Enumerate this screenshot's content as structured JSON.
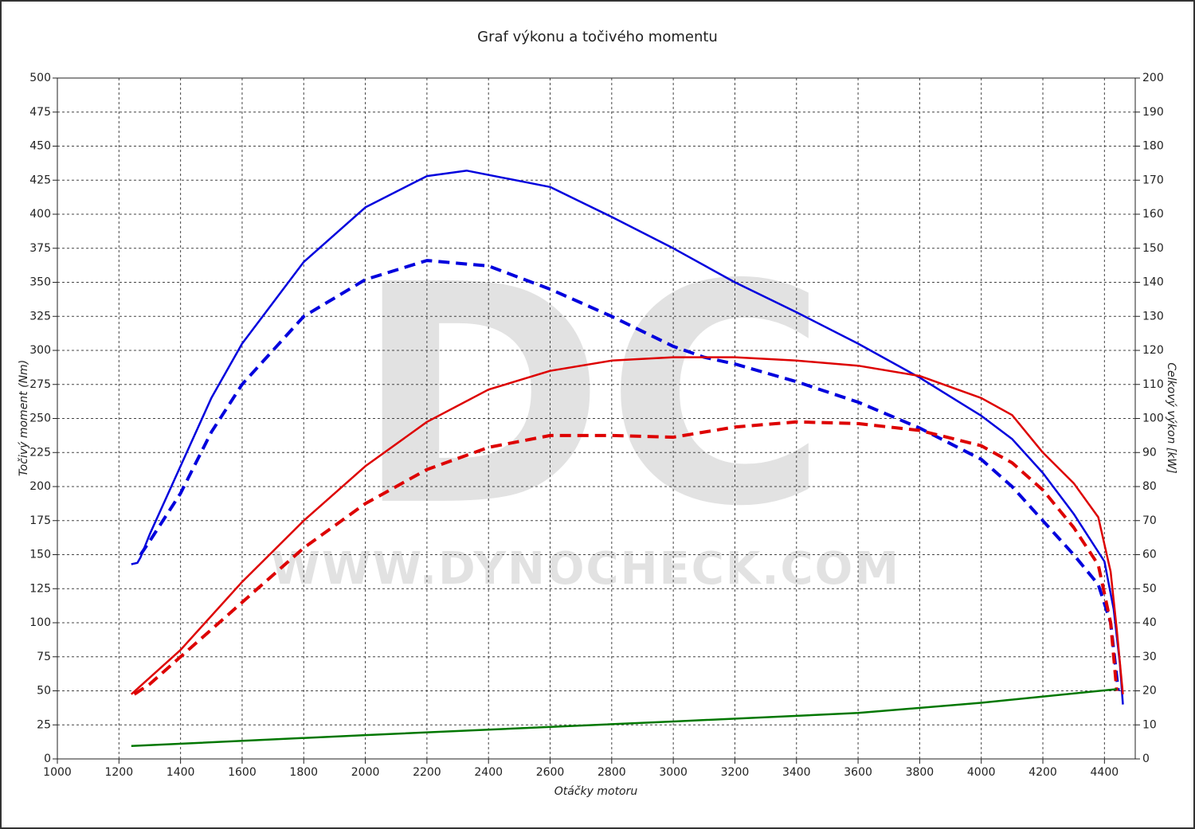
{
  "chart_data": {
    "type": "line",
    "title": "Graf výkonu a točivého momentu",
    "xlabel": "Otáčky motoru",
    "ylabel": "Točivý moment (Nm)",
    "y2label": "Celkový výkon [kW]",
    "watermark": {
      "logo": "DC",
      "url": "WWW.DYNOCHECK.COM"
    },
    "grid": true,
    "xlim": [
      1000,
      4500
    ],
    "xticks": [
      1000,
      1200,
      1400,
      1600,
      1800,
      2000,
      2200,
      2400,
      2600,
      2800,
      3000,
      3200,
      3400,
      3600,
      3800,
      4000,
      4200,
      4400
    ],
    "ylim": [
      0,
      500
    ],
    "yticks": [
      0,
      25,
      50,
      75,
      100,
      125,
      150,
      175,
      200,
      225,
      250,
      275,
      300,
      325,
      350,
      375,
      400,
      425,
      450,
      475,
      500
    ],
    "y2lim": [
      0,
      200
    ],
    "y2ticks": [
      0,
      10,
      20,
      30,
      40,
      50,
      60,
      70,
      80,
      90,
      100,
      110,
      120,
      130,
      140,
      150,
      160,
      170,
      180,
      190,
      200
    ],
    "series": [
      {
        "color": "#0000dd",
        "dashed": false,
        "axis": "y",
        "x": [
          1240,
          1260,
          1270,
          1300,
          1350,
          1400,
          1500,
          1600,
          1800,
          2000,
          2200,
          2330,
          2600,
          2800,
          3000,
          3200,
          3400,
          3600,
          3800,
          4000,
          4100,
          4200,
          4300,
          4400,
          4430,
          4450,
          4460
        ],
        "values": [
          143,
          144,
          148,
          165,
          190,
          215,
          265,
          305,
          365,
          405,
          428,
          432,
          420,
          398,
          375,
          350,
          328,
          305,
          280,
          252,
          235,
          210,
          180,
          145,
          110,
          70,
          40
        ]
      },
      {
        "color": "#0000dd",
        "dashed": true,
        "axis": "y",
        "x": [
          1270,
          1300,
          1400,
          1500,
          1600,
          1800,
          2000,
          2200,
          2400,
          2600,
          2800,
          3000,
          3100,
          3200,
          3400,
          3600,
          3800,
          4000,
          4100,
          4200,
          4300,
          4380,
          4420,
          4440,
          4445
        ],
        "values": [
          150,
          160,
          195,
          240,
          275,
          325,
          352,
          366,
          362,
          345,
          325,
          303,
          295,
          290,
          277,
          262,
          243,
          220,
          200,
          175,
          150,
          128,
          100,
          60,
          50
        ]
      },
      {
        "color": "#dd0000",
        "dashed": false,
        "axis": "y2",
        "x": [
          1240,
          1400,
          1600,
          1800,
          2000,
          2200,
          2400,
          2600,
          2800,
          3000,
          3200,
          3400,
          3600,
          3800,
          4000,
          4100,
          4200,
          4300,
          4380,
          4420,
          4440,
          4460
        ],
        "values": [
          19,
          32,
          52,
          70,
          86,
          99,
          108.5,
          114,
          117,
          118,
          118,
          117,
          115.5,
          112.5,
          106,
          101,
          90,
          81,
          71,
          55,
          38,
          19
        ]
      },
      {
        "color": "#dd0000",
        "dashed": true,
        "axis": "y2",
        "x": [
          1250,
          1300,
          1400,
          1600,
          1800,
          2000,
          2200,
          2400,
          2600,
          2800,
          3000,
          3200,
          3400,
          3600,
          3800,
          4000,
          4100,
          4200,
          4300,
          4380,
          4420,
          4440
        ],
        "values": [
          19,
          22,
          30,
          46,
          62,
          75,
          85,
          91.5,
          95,
          95,
          94.5,
          97.5,
          99,
          98.5,
          96.5,
          92,
          87,
          79,
          68,
          57,
          40,
          20
        ]
      },
      {
        "color": "#007700",
        "dashed": false,
        "axis": "y2",
        "x": [
          1240,
          2000,
          3000,
          3600,
          4000,
          4440
        ],
        "values": [
          3.8,
          7,
          11,
          13.5,
          16.5,
          20.5
        ]
      }
    ]
  }
}
